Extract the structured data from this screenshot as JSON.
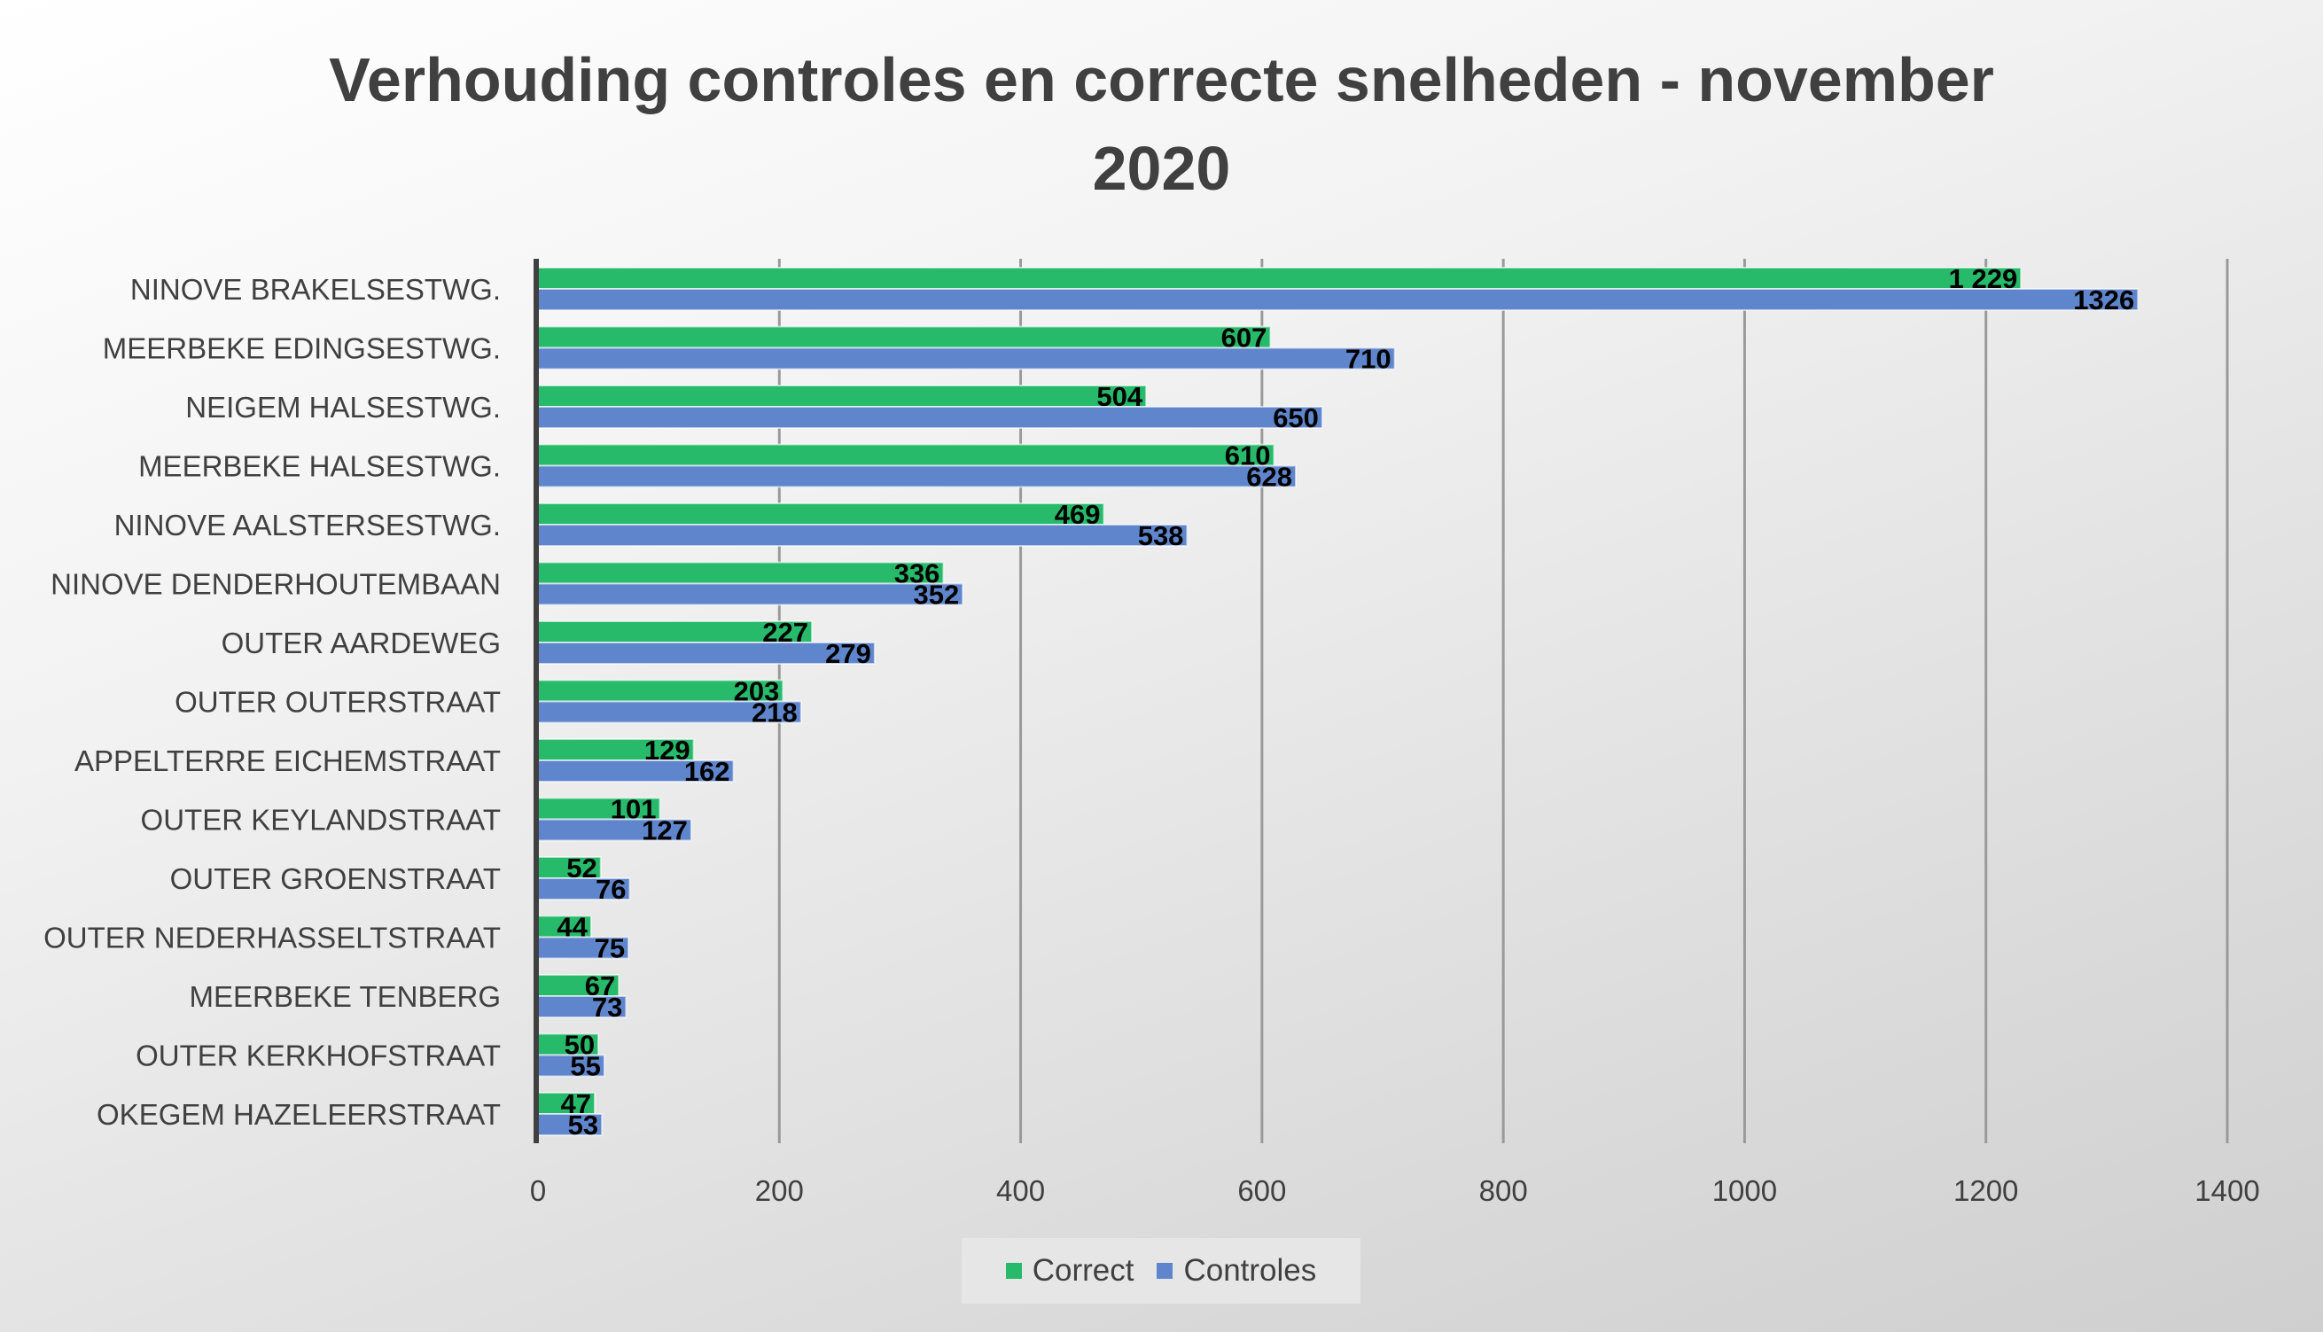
{
  "chart_data": {
    "type": "bar",
    "orientation": "horizontal",
    "title": "Verhouding controles en correcte snelheden - november 2020",
    "title_lines": [
      "Verhouding controles en correcte snelheden - november",
      "2020"
    ],
    "categories": [
      "NINOVE BRAKELSESTWG.",
      "MEERBEKE EDINGSESTWG.",
      "NEIGEM HALSESTWG.",
      "MEERBEKE HALSESTWG.",
      "NINOVE AALSTERSESTWG.",
      "NINOVE DENDERHOUTEMBAAN",
      "OUTER AARDEWEG",
      "OUTER OUTERSTRAAT",
      "APPELTERRE EICHEMSTRAAT",
      "OUTER KEYLANDSTRAAT",
      "OUTER GROENSTRAAT",
      "OUTER NEDERHASSELTSTRAAT",
      "MEERBEKE TENBERG",
      "OUTER KERKHOFSTRAAT",
      "OKEGEM HAZELEERSTRAAT"
    ],
    "series": [
      {
        "name": "Correct",
        "color": "#26BA6A",
        "values": [
          1229,
          607,
          504,
          610,
          469,
          336,
          227,
          203,
          129,
          101,
          52,
          44,
          67,
          50,
          47
        ],
        "labels": [
          "1 229",
          "607",
          "504",
          "610",
          "469",
          "336",
          "227",
          "203",
          "129",
          "101",
          "52",
          "44",
          "67",
          "50",
          "47"
        ]
      },
      {
        "name": "Controles",
        "color": "#5F86CC",
        "values": [
          1326,
          710,
          650,
          628,
          538,
          352,
          279,
          218,
          162,
          127,
          76,
          75,
          73,
          55,
          53
        ],
        "labels": [
          "1326",
          "710",
          "650",
          "628",
          "538",
          "352",
          "279",
          "218",
          "162",
          "127",
          "76",
          "75",
          "73",
          "55",
          "53"
        ]
      }
    ],
    "xlim": [
      0,
      1400
    ],
    "xticks": [
      0,
      200,
      400,
      600,
      800,
      1000,
      1200,
      1400
    ],
    "xtick_labels": [
      "0",
      "200",
      "400",
      "600",
      "800",
      "1000",
      "1200",
      "1400"
    ],
    "grid": true,
    "legend_position": "bottom",
    "xlabel": "",
    "ylabel": ""
  }
}
